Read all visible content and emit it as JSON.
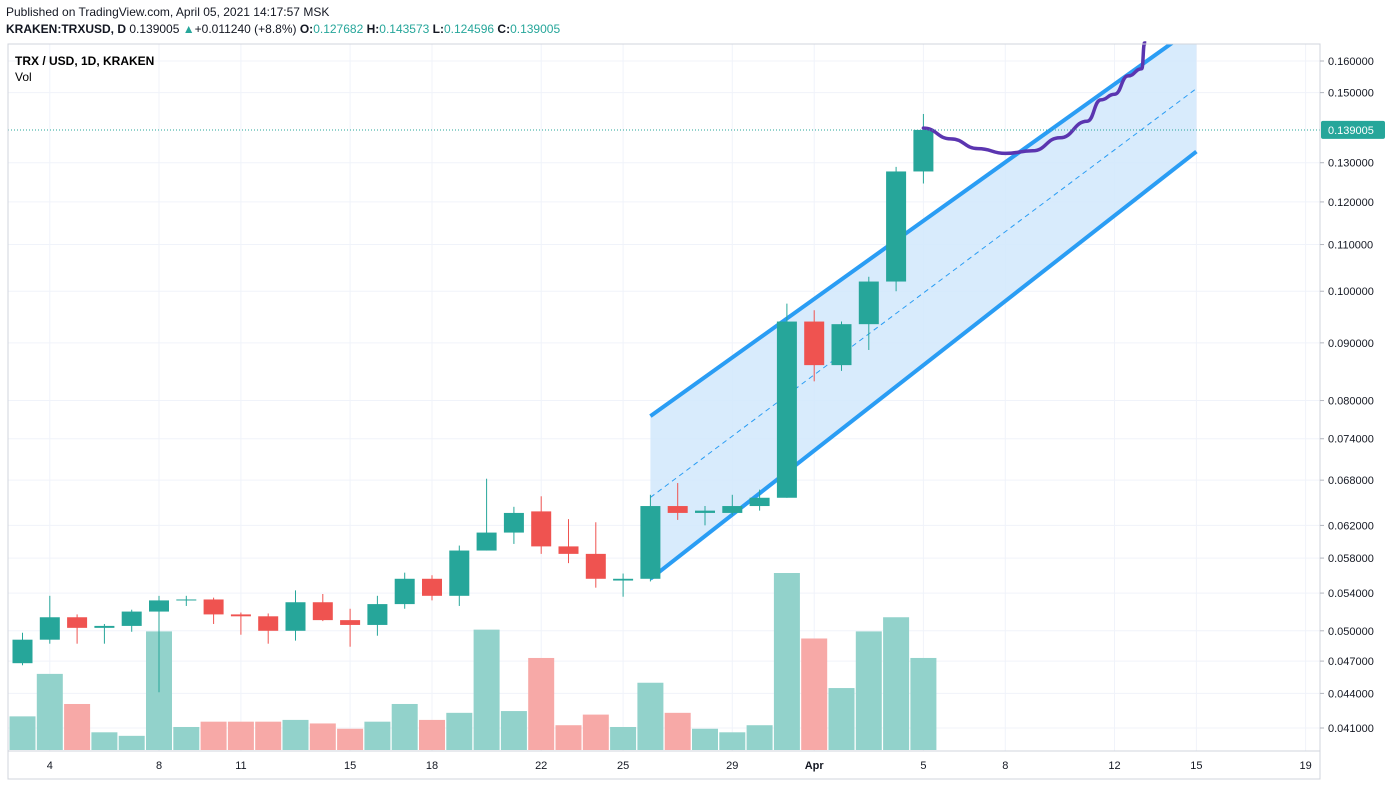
{
  "header": {
    "published": "Published on TradingView.com, April 05, 2021 14:17:57 MSK",
    "symbol": "KRAKEN:TRXUSD, D",
    "last": "0.139005",
    "change_arrow": "▲",
    "change": "+0.011240 (+8.8%)",
    "o_label": "O:",
    "o": "0.127682",
    "h_label": "H:",
    "h": "0.143573",
    "l_label": "L:",
    "l": "0.124596",
    "c_label": "C:",
    "c": "0.139005"
  },
  "legend": {
    "title": "TRX / USD, 1D, KRAKEN",
    "volume": "Vol"
  },
  "colors": {
    "up": "#26a69a",
    "down": "#ef5350",
    "up_vol": "#92d2cb",
    "down_vol": "#f7a9a7",
    "channel": "#2a9df4",
    "channel_fill": "#d1e7fb",
    "projection": "#5b35b0",
    "grid": "#f0f3fa"
  },
  "chart_data": {
    "type": "candlestick",
    "scale": "log",
    "y_ticks": [
      "0.160000",
      "0.150000",
      "0.130000",
      "0.120000",
      "0.110000",
      "0.100000",
      "0.090000",
      "0.080000",
      "0.074000",
      "0.068000",
      "0.062000",
      "0.058000",
      "0.054000",
      "0.050000",
      "0.047000",
      "0.044000",
      "0.041000"
    ],
    "x_ticks": [
      "4",
      "8",
      "11",
      "15",
      "18",
      "22",
      "25",
      "29",
      "Apr",
      "5",
      "8",
      "12",
      "15",
      "19"
    ],
    "last_price_label": "0.139005",
    "candles": [
      {
        "date": "Mar 3",
        "o": 0.0468,
        "h": 0.0498,
        "l": 0.0466,
        "c": 0.0491
      },
      {
        "date": "Mar 4",
        "o": 0.0491,
        "h": 0.0537,
        "l": 0.0487,
        "c": 0.0514
      },
      {
        "date": "Mar 5",
        "o": 0.0514,
        "h": 0.0517,
        "l": 0.0487,
        "c": 0.0503
      },
      {
        "date": "Mar 6",
        "o": 0.0503,
        "h": 0.0507,
        "l": 0.0487,
        "c": 0.0505
      },
      {
        "date": "Mar 7",
        "o": 0.0505,
        "h": 0.0522,
        "l": 0.0499,
        "c": 0.052
      },
      {
        "date": "Mar 8",
        "o": 0.052,
        "h": 0.0537,
        "l": 0.0441,
        "c": 0.0532
      },
      {
        "date": "Mar 9",
        "o": 0.0532,
        "h": 0.0537,
        "l": 0.0526,
        "c": 0.0533
      },
      {
        "date": "Mar 10",
        "o": 0.0533,
        "h": 0.0535,
        "l": 0.0507,
        "c": 0.0517
      },
      {
        "date": "Mar 11",
        "o": 0.0517,
        "h": 0.0519,
        "l": 0.0496,
        "c": 0.0515
      },
      {
        "date": "Mar 12",
        "o": 0.0515,
        "h": 0.0518,
        "l": 0.0487,
        "c": 0.05
      },
      {
        "date": "Mar 13",
        "o": 0.05,
        "h": 0.0543,
        "l": 0.049,
        "c": 0.053
      },
      {
        "date": "Mar 14",
        "o": 0.053,
        "h": 0.0539,
        "l": 0.051,
        "c": 0.0511
      },
      {
        "date": "Mar 15",
        "o": 0.0511,
        "h": 0.0523,
        "l": 0.0484,
        "c": 0.0506
      },
      {
        "date": "Mar 16",
        "o": 0.0506,
        "h": 0.0537,
        "l": 0.0495,
        "c": 0.0528
      },
      {
        "date": "Mar 17",
        "o": 0.0528,
        "h": 0.0563,
        "l": 0.0523,
        "c": 0.0556
      },
      {
        "date": "Mar 18",
        "o": 0.0556,
        "h": 0.056,
        "l": 0.0532,
        "c": 0.0537
      },
      {
        "date": "Mar 19",
        "o": 0.0537,
        "h": 0.0595,
        "l": 0.0526,
        "c": 0.0589
      },
      {
        "date": "Mar 20",
        "o": 0.0589,
        "h": 0.0682,
        "l": 0.0589,
        "c": 0.0611
      },
      {
        "date": "Mar 21",
        "o": 0.0611,
        "h": 0.0644,
        "l": 0.0597,
        "c": 0.0636
      },
      {
        "date": "Mar 22",
        "o": 0.0638,
        "h": 0.0658,
        "l": 0.0585,
        "c": 0.0594
      },
      {
        "date": "Mar 23",
        "o": 0.0594,
        "h": 0.0628,
        "l": 0.0574,
        "c": 0.0585
      },
      {
        "date": "Mar 24",
        "o": 0.0585,
        "h": 0.0624,
        "l": 0.0546,
        "c": 0.0556
      },
      {
        "date": "Mar 25",
        "o": 0.0554,
        "h": 0.0562,
        "l": 0.0536,
        "c": 0.0556
      },
      {
        "date": "Mar 26",
        "o": 0.0556,
        "h": 0.066,
        "l": 0.0553,
        "c": 0.0645
      },
      {
        "date": "Mar 27",
        "o": 0.0645,
        "h": 0.0676,
        "l": 0.0627,
        "c": 0.0636
      },
      {
        "date": "Mar 28",
        "o": 0.0636,
        "h": 0.0645,
        "l": 0.062,
        "c": 0.0639
      },
      {
        "date": "Mar 29",
        "o": 0.0636,
        "h": 0.066,
        "l": 0.0633,
        "c": 0.0645
      },
      {
        "date": "Mar 30",
        "o": 0.0645,
        "h": 0.0667,
        "l": 0.0639,
        "c": 0.0656
      },
      {
        "date": "Mar 31",
        "o": 0.0656,
        "h": 0.0975,
        "l": 0.0656,
        "c": 0.094
      },
      {
        "date": "Apr 1",
        "o": 0.094,
        "h": 0.0962,
        "l": 0.0832,
        "c": 0.086
      },
      {
        "date": "Apr 2",
        "o": 0.086,
        "h": 0.094,
        "l": 0.085,
        "c": 0.0935
      },
      {
        "date": "Apr 3",
        "o": 0.0935,
        "h": 0.103,
        "l": 0.0887,
        "c": 0.102
      },
      {
        "date": "Apr 4",
        "o": 0.102,
        "h": 0.1289,
        "l": 0.1,
        "c": 0.1277
      },
      {
        "date": "Apr 5",
        "o": 0.1277,
        "h": 0.1436,
        "l": 0.1246,
        "c": 0.139
      }
    ],
    "volume_relative": [
      0.19,
      0.43,
      0.26,
      0.1,
      0.08,
      0.67,
      0.13,
      0.16,
      0.16,
      0.16,
      0.17,
      0.15,
      0.12,
      0.16,
      0.26,
      0.17,
      0.21,
      0.68,
      0.22,
      0.52,
      0.14,
      0.2,
      0.13,
      0.38,
      0.21,
      0.12,
      0.1,
      0.14,
      1.0,
      0.63,
      0.35,
      0.67,
      0.75,
      0.52
    ],
    "channel": {
      "start": "Mar 26",
      "end": "Apr 15",
      "upper_start": 0.0775,
      "upper_end": 0.172,
      "lower_start": 0.0556,
      "lower_end": 0.133
    },
    "projection": [
      {
        "date": "Apr 5",
        "v": 0.1395
      },
      {
        "date": "Apr 6",
        "v": 0.1365
      },
      {
        "date": "Apr 7",
        "v": 0.1338
      },
      {
        "date": "Apr 8",
        "v": 0.1325
      },
      {
        "date": "Apr 9",
        "v": 0.1332
      },
      {
        "date": "Apr 10",
        "v": 0.1368
      },
      {
        "date": "Apr 11",
        "v": 0.1415
      },
      {
        "date": "Apr 11.5",
        "v": 0.1478
      },
      {
        "date": "Apr 12",
        "v": 0.1495
      },
      {
        "date": "Apr 12.5",
        "v": 0.1552
      },
      {
        "date": "Apr 13",
        "v": 0.1575
      },
      {
        "date": "Apr 13.1",
        "v": 0.166
      }
    ]
  }
}
